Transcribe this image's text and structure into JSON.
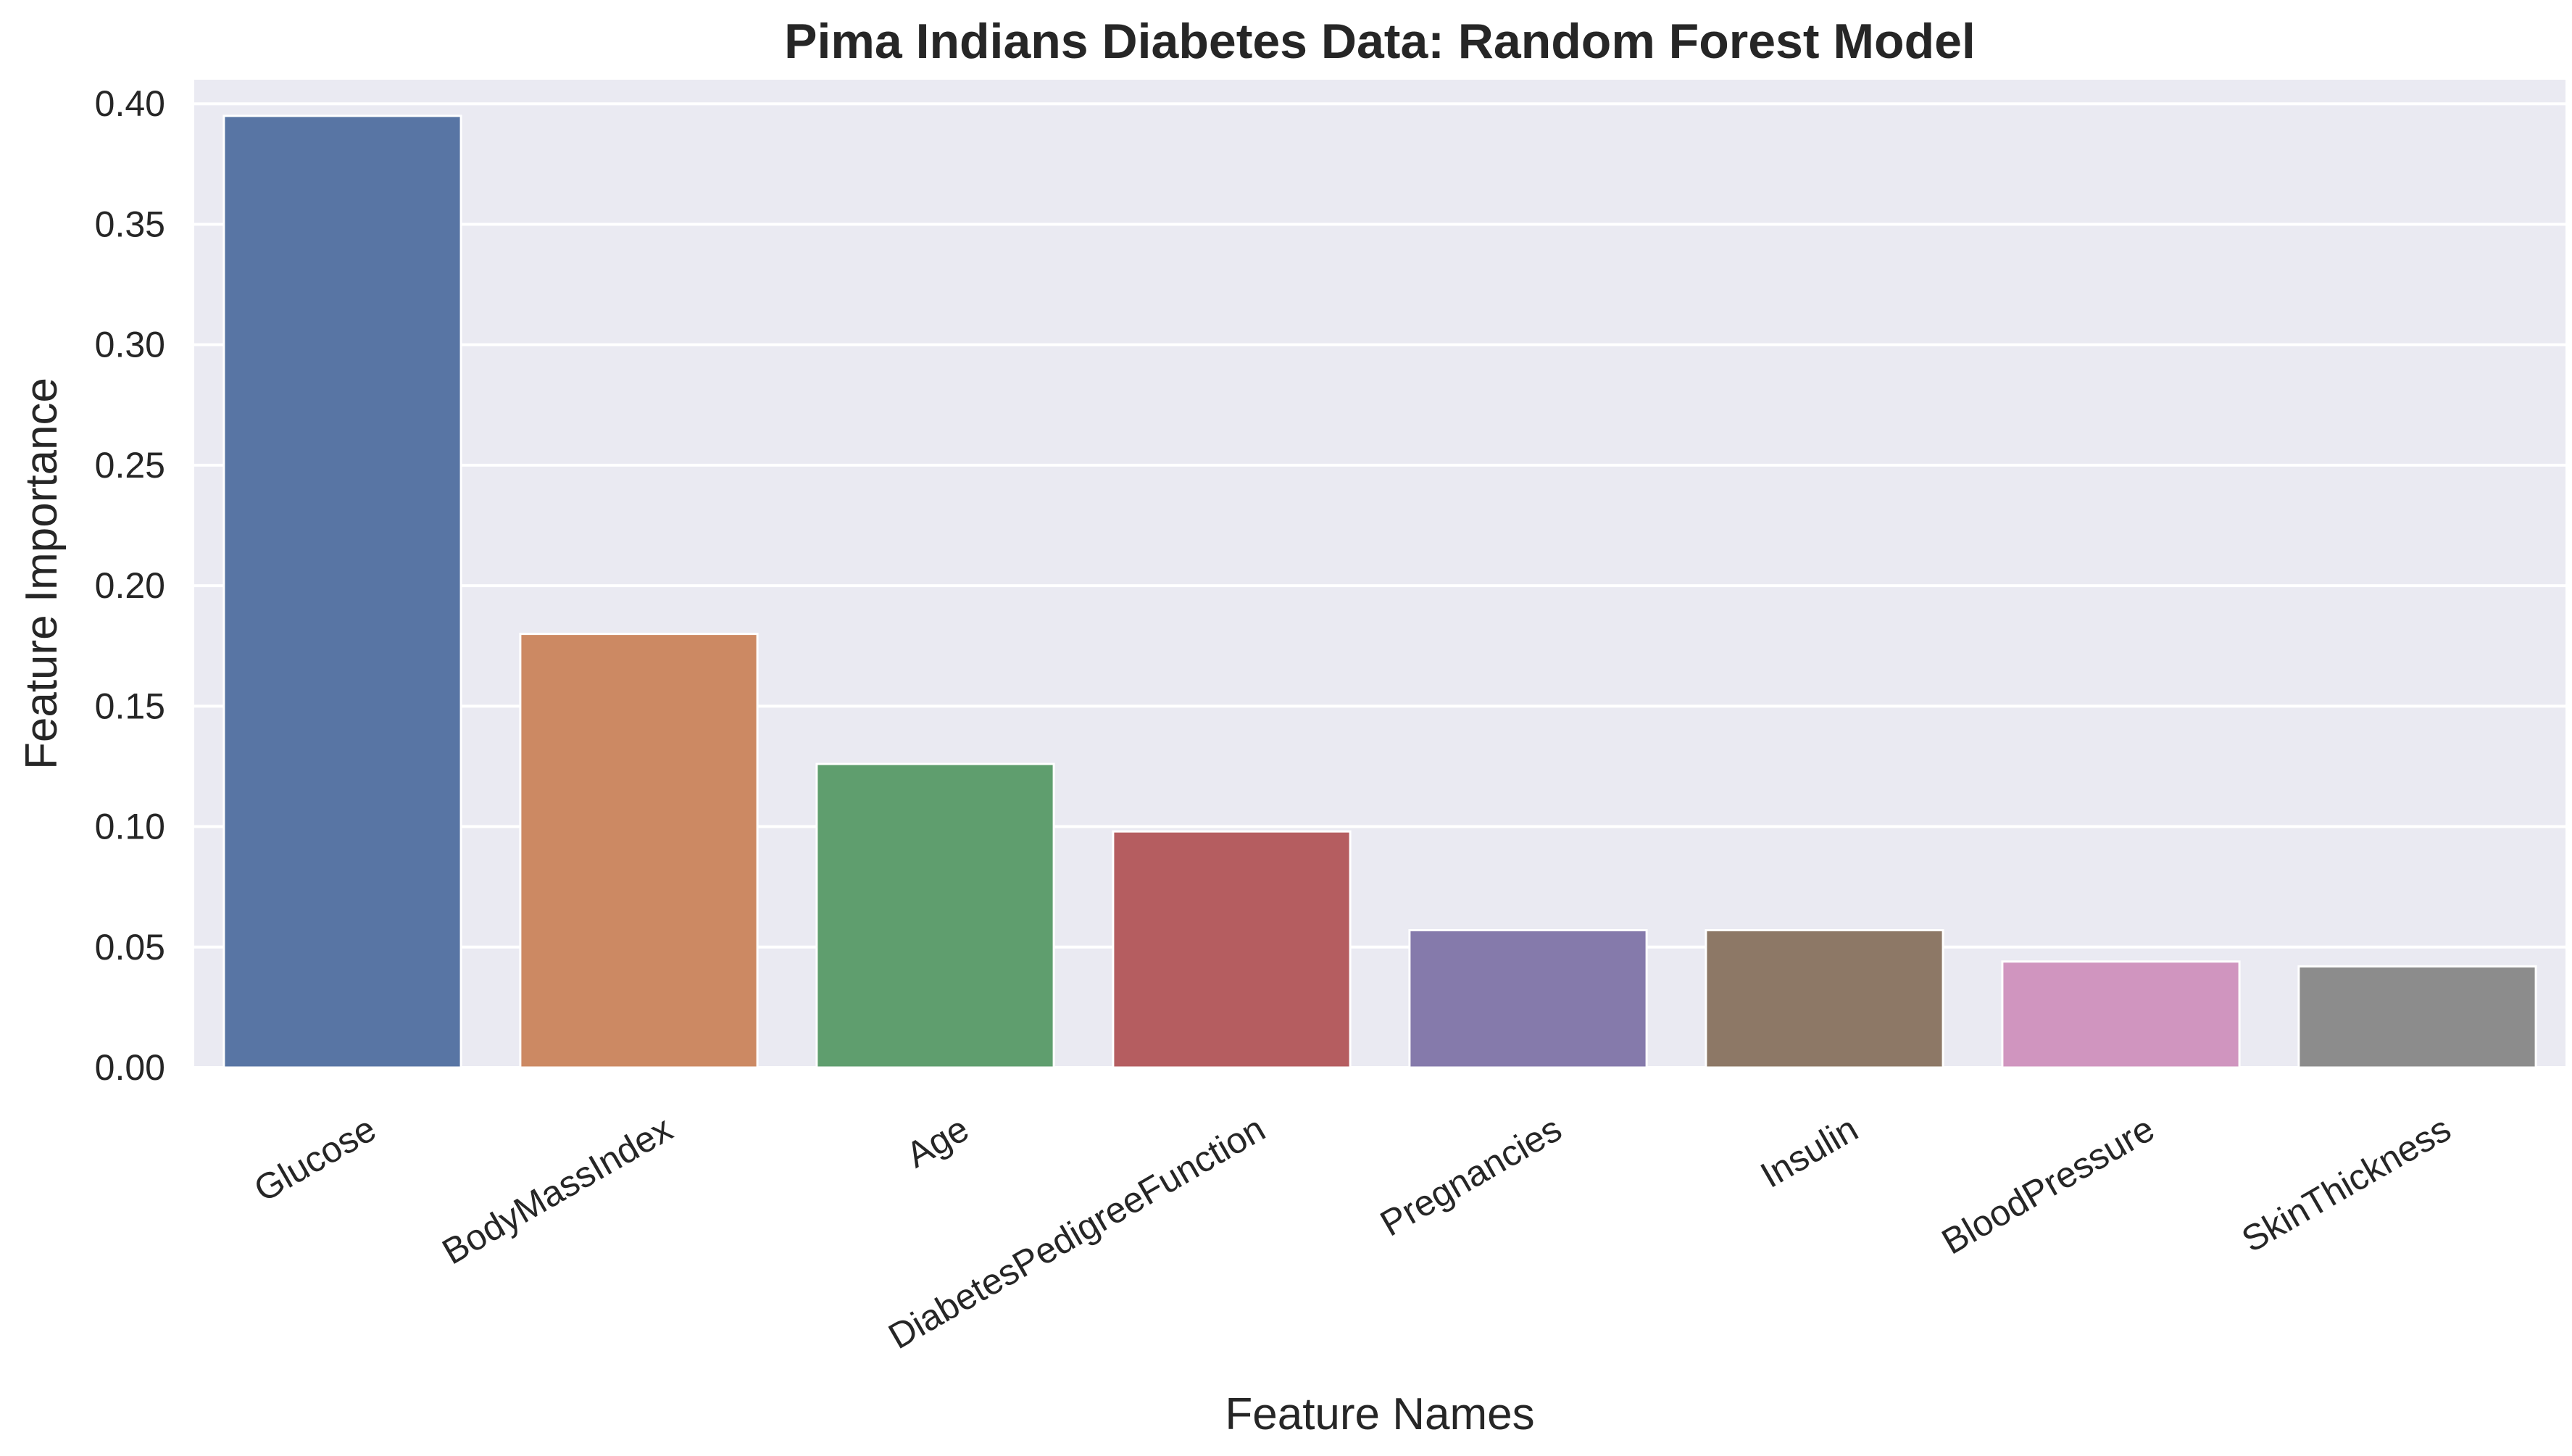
{
  "chart_data": {
    "type": "bar",
    "title": "Pima Indians Diabetes Data: Random Forest Model",
    "xlabel": "Feature Names",
    "ylabel": "Feature Importance",
    "categories": [
      "Glucose",
      "BodyMassIndex",
      "Age",
      "DiabetesPedigreeFunction",
      "Pregnancies",
      "Insulin",
      "BloodPressure",
      "SkinThickness"
    ],
    "values": [
      0.395,
      0.18,
      0.126,
      0.098,
      0.057,
      0.057,
      0.044,
      0.042
    ],
    "colors": [
      "#5875a4",
      "#cc8963",
      "#5f9e6e",
      "#b55d60",
      "#857aab",
      "#8d7866",
      "#d095bf",
      "#8c8c8c"
    ],
    "ylim": [
      0,
      0.41
    ],
    "yticks": [
      0.0,
      0.05,
      0.1,
      0.15,
      0.2,
      0.25,
      0.3,
      0.35,
      0.4
    ],
    "ytick_labels": [
      "0.00",
      "0.05",
      "0.10",
      "0.15",
      "0.20",
      "0.25",
      "0.30",
      "0.35",
      "0.40"
    ],
    "grid": true,
    "background": "#eaeaf2",
    "grid_color": "#ffffff",
    "legend": "none"
  }
}
